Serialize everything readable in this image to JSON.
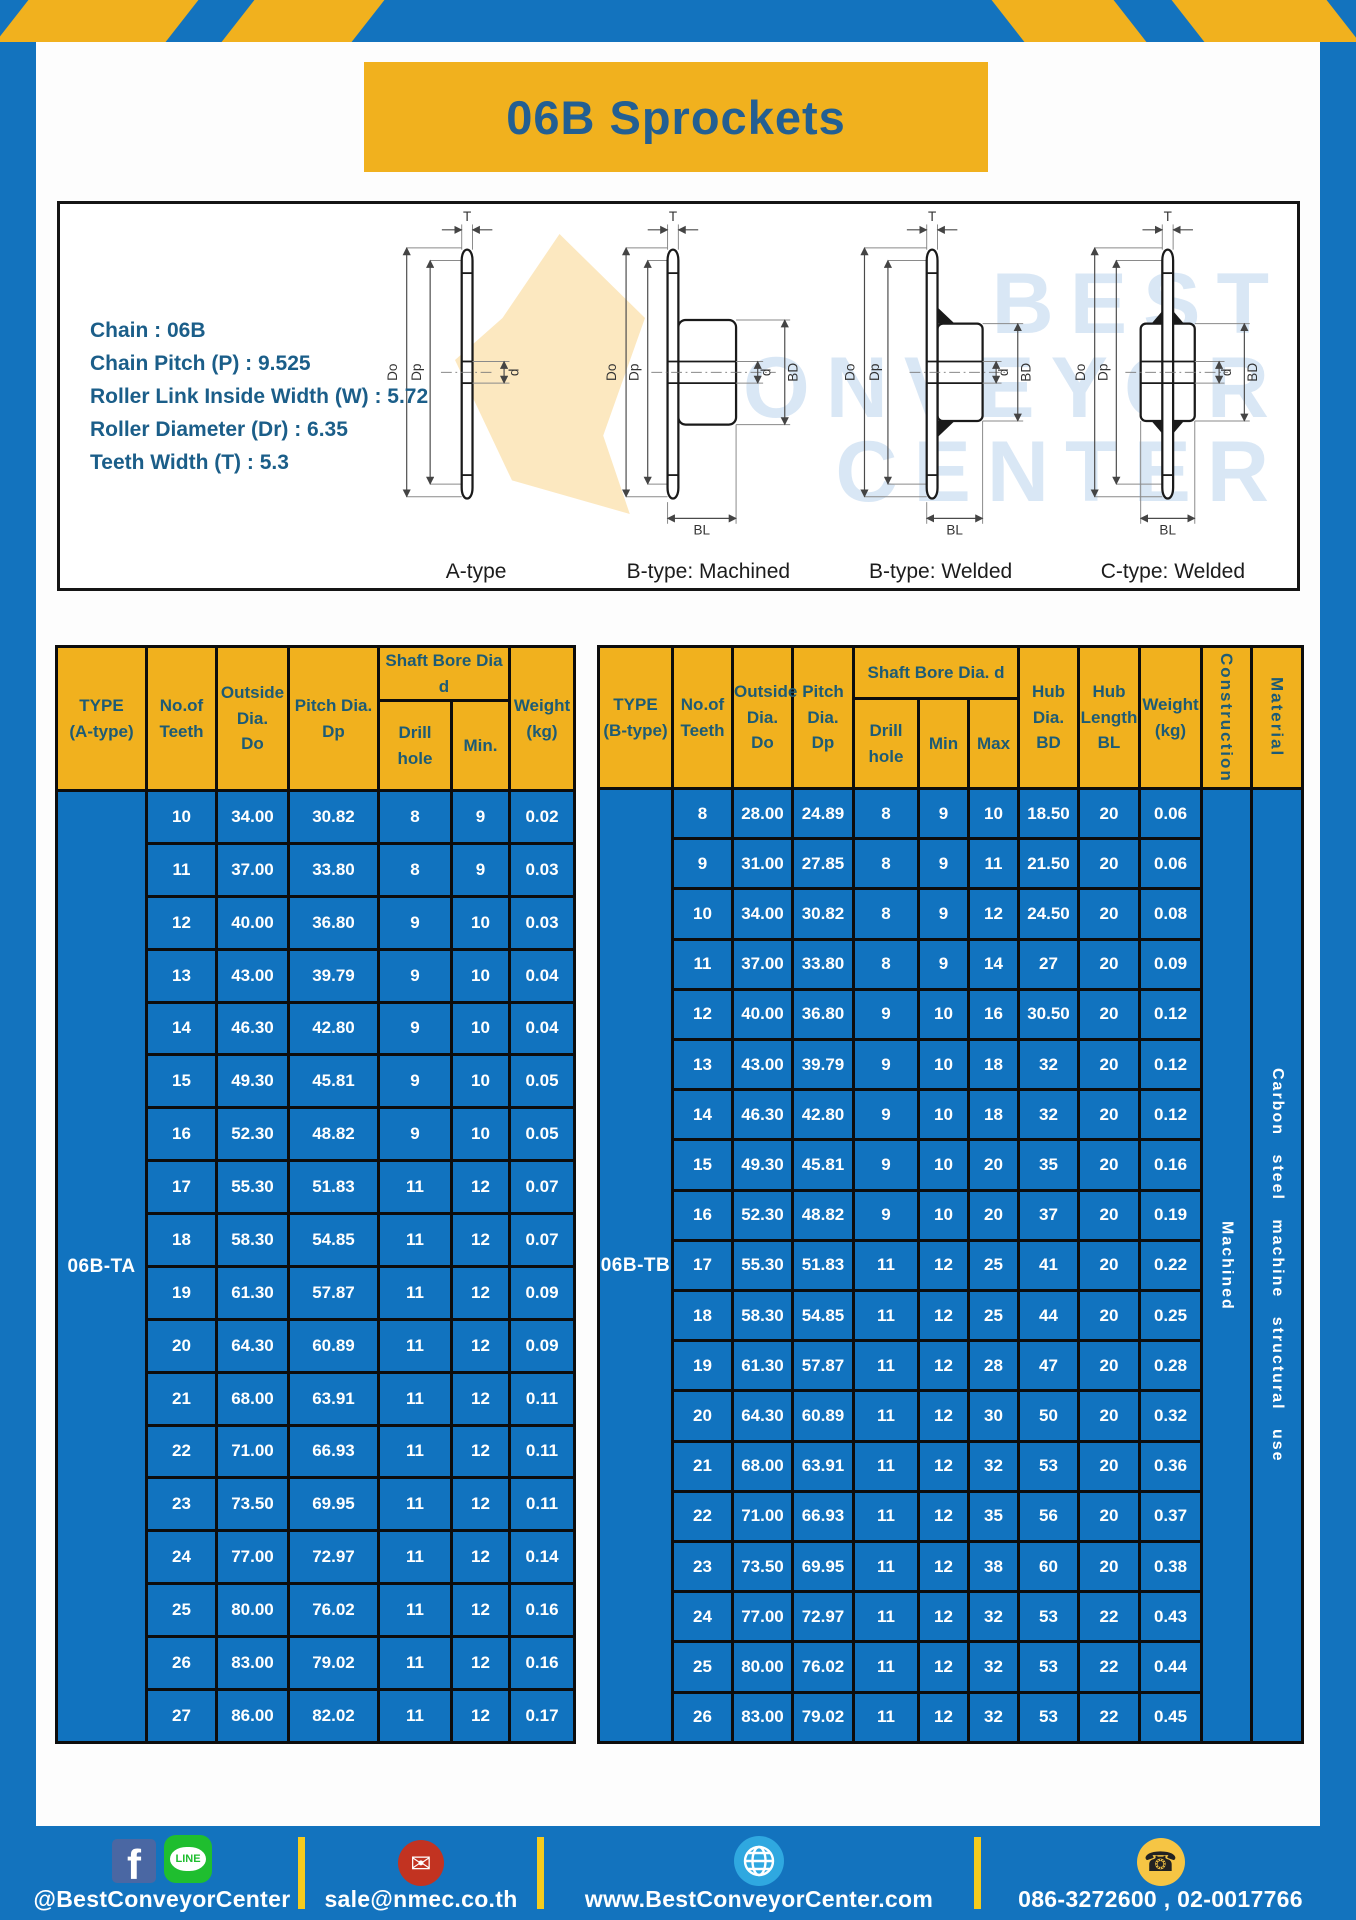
{
  "page": {
    "title": "06B Sprockets"
  },
  "specs": {
    "lines": [
      "Chain : 06B",
      "Chain Pitch (P) : 9.525",
      "Roller Link Inside Width (W) : 5.72",
      "Roller Diameter (Dr) : 6.35",
      "Teeth Width (T) : 5.3"
    ]
  },
  "watermark": {
    "lines": [
      "BEST",
      "CONVEYOR",
      "CENTER"
    ]
  },
  "diagrams": {
    "captions": [
      "A-type",
      "B-type: Machined",
      "B-type: Welded",
      "C-type: Welded"
    ],
    "dims": {
      "T": "T",
      "Do": "Do",
      "Dp": "Dp",
      "d": "d",
      "BD": "BD",
      "BL": "BL"
    }
  },
  "table_a": {
    "type_label": "06B-TA",
    "headers": {
      "type": "TYPE\n(A-type)",
      "teeth": "No.of\nTeeth",
      "outside": "Outside\nDia.\nDo",
      "pitch": "Pitch Dia.\nDp",
      "shaft_bore": "Shaft Bore Dia d",
      "drill": "Drill hole",
      "min": "Min.",
      "weight": "Weight\n(kg)"
    },
    "rows": [
      [
        "10",
        "34.00",
        "30.82",
        "8",
        "9",
        "0.02"
      ],
      [
        "11",
        "37.00",
        "33.80",
        "8",
        "9",
        "0.03"
      ],
      [
        "12",
        "40.00",
        "36.80",
        "9",
        "10",
        "0.03"
      ],
      [
        "13",
        "43.00",
        "39.79",
        "9",
        "10",
        "0.04"
      ],
      [
        "14",
        "46.30",
        "42.80",
        "9",
        "10",
        "0.04"
      ],
      [
        "15",
        "49.30",
        "45.81",
        "9",
        "10",
        "0.05"
      ],
      [
        "16",
        "52.30",
        "48.82",
        "9",
        "10",
        "0.05"
      ],
      [
        "17",
        "55.30",
        "51.83",
        "11",
        "12",
        "0.07"
      ],
      [
        "18",
        "58.30",
        "54.85",
        "11",
        "12",
        "0.07"
      ],
      [
        "19",
        "61.30",
        "57.87",
        "11",
        "12",
        "0.09"
      ],
      [
        "20",
        "64.30",
        "60.89",
        "11",
        "12",
        "0.09"
      ],
      [
        "21",
        "68.00",
        "63.91",
        "11",
        "12",
        "0.11"
      ],
      [
        "22",
        "71.00",
        "66.93",
        "11",
        "12",
        "0.11"
      ],
      [
        "23",
        "73.50",
        "69.95",
        "11",
        "12",
        "0.11"
      ],
      [
        "24",
        "77.00",
        "72.97",
        "11",
        "12",
        "0.14"
      ],
      [
        "25",
        "80.00",
        "76.02",
        "11",
        "12",
        "0.16"
      ],
      [
        "26",
        "83.00",
        "79.02",
        "11",
        "12",
        "0.16"
      ],
      [
        "27",
        "86.00",
        "82.02",
        "11",
        "12",
        "0.17"
      ]
    ]
  },
  "table_b": {
    "type_label": "06B-TB",
    "construction": "Machined",
    "material": "Carbon steel machine structural use",
    "headers": {
      "type": "TYPE\n(B-type)",
      "teeth": "No.of\nTeeth",
      "outside": "Outside\nDia.\nDo",
      "pitch": "Pitch\nDia.\nDp",
      "shaft_bore": "Shaft Bore Dia. d",
      "drill": "Drill hole",
      "min": "Min",
      "max": "Max",
      "hub_dia": "Hub\nDia.\nBD",
      "hub_len": "Hub\nLength\nBL",
      "weight": "Weight\n(kg)",
      "construction": "Construction",
      "material": "Material"
    },
    "rows": [
      [
        "8",
        "28.00",
        "24.89",
        "8",
        "9",
        "10",
        "18.50",
        "20",
        "0.06"
      ],
      [
        "9",
        "31.00",
        "27.85",
        "8",
        "9",
        "11",
        "21.50",
        "20",
        "0.06"
      ],
      [
        "10",
        "34.00",
        "30.82",
        "8",
        "9",
        "12",
        "24.50",
        "20",
        "0.08"
      ],
      [
        "11",
        "37.00",
        "33.80",
        "8",
        "9",
        "14",
        "27",
        "20",
        "0.09"
      ],
      [
        "12",
        "40.00",
        "36.80",
        "9",
        "10",
        "16",
        "30.50",
        "20",
        "0.12"
      ],
      [
        "13",
        "43.00",
        "39.79",
        "9",
        "10",
        "18",
        "32",
        "20",
        "0.12"
      ],
      [
        "14",
        "46.30",
        "42.80",
        "9",
        "10",
        "18",
        "32",
        "20",
        "0.12"
      ],
      [
        "15",
        "49.30",
        "45.81",
        "9",
        "10",
        "20",
        "35",
        "20",
        "0.16"
      ],
      [
        "16",
        "52.30",
        "48.82",
        "9",
        "10",
        "20",
        "37",
        "20",
        "0.19"
      ],
      [
        "17",
        "55.30",
        "51.83",
        "11",
        "12",
        "25",
        "41",
        "20",
        "0.22"
      ],
      [
        "18",
        "58.30",
        "54.85",
        "11",
        "12",
        "25",
        "44",
        "20",
        "0.25"
      ],
      [
        "19",
        "61.30",
        "57.87",
        "11",
        "12",
        "28",
        "47",
        "20",
        "0.28"
      ],
      [
        "20",
        "64.30",
        "60.89",
        "11",
        "12",
        "30",
        "50",
        "20",
        "0.32"
      ],
      [
        "21",
        "68.00",
        "63.91",
        "11",
        "12",
        "32",
        "53",
        "20",
        "0.36"
      ],
      [
        "22",
        "71.00",
        "66.93",
        "11",
        "12",
        "35",
        "56",
        "20",
        "0.37"
      ],
      [
        "23",
        "73.50",
        "69.95",
        "11",
        "12",
        "38",
        "60",
        "20",
        "0.38"
      ],
      [
        "24",
        "77.00",
        "72.97",
        "11",
        "12",
        "32",
        "53",
        "22",
        "0.43"
      ],
      [
        "25",
        "80.00",
        "76.02",
        "11",
        "12",
        "32",
        "53",
        "22",
        "0.44"
      ],
      [
        "26",
        "83.00",
        "79.02",
        "11",
        "12",
        "32",
        "53",
        "22",
        "0.45"
      ]
    ]
  },
  "footer": {
    "facebook_letter": "f",
    "line_label": "LINE",
    "facebook_handle": "@BestConveyorCenter",
    "email": "sale@nmec.co.th",
    "website": "www.BestConveyorCenter.com",
    "phone": "086-3272600 , 02-0017766"
  }
}
